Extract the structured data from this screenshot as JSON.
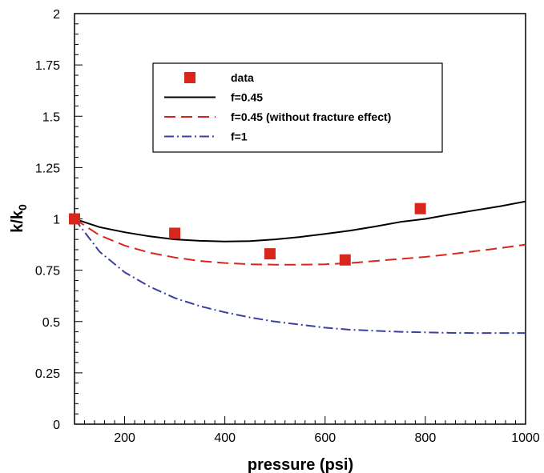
{
  "chart_data": {
    "type": "line",
    "xlabel": "pressure (psi)",
    "ylabel_main": "k/k",
    "ylabel_sub": "0",
    "xlim": [
      100,
      1000
    ],
    "ylim": [
      0,
      2
    ],
    "xticks": [
      200,
      400,
      600,
      800,
      1000
    ],
    "yticks": [
      0,
      0.25,
      0.5,
      0.75,
      1,
      1.25,
      1.5,
      1.75,
      2
    ],
    "ytick_labels": [
      "0",
      "0.25",
      "0.5",
      "0.75",
      "1",
      "1.25",
      "1.5",
      "1.75",
      "2"
    ],
    "grid": false,
    "legend_position": "upper-center",
    "series": [
      {
        "name": "data",
        "kind": "scatter",
        "color": "#d9261c",
        "marker": "square",
        "x": [
          100,
          300,
          490,
          640,
          790
        ],
        "y": [
          1.0,
          0.93,
          0.83,
          0.8,
          1.05
        ]
      },
      {
        "name": "f=0.45",
        "kind": "line",
        "color": "#000000",
        "dash": "solid",
        "x": [
          100,
          150,
          200,
          250,
          300,
          350,
          400,
          450,
          500,
          550,
          600,
          650,
          700,
          750,
          800,
          850,
          900,
          950,
          1000
        ],
        "y": [
          1.0,
          0.96,
          0.935,
          0.915,
          0.9,
          0.893,
          0.89,
          0.892,
          0.9,
          0.912,
          0.927,
          0.943,
          0.963,
          0.985,
          1.0,
          1.022,
          1.042,
          1.062,
          1.085
        ]
      },
      {
        "name": "f=0.45 (without fracture effect)",
        "kind": "line",
        "color": "#d9261c",
        "dash": "dashed",
        "x": [
          100,
          150,
          200,
          250,
          300,
          350,
          400,
          450,
          500,
          550,
          600,
          650,
          700,
          750,
          800,
          850,
          900,
          950,
          1000
        ],
        "y": [
          1.0,
          0.92,
          0.87,
          0.835,
          0.812,
          0.795,
          0.785,
          0.779,
          0.777,
          0.777,
          0.779,
          0.785,
          0.795,
          0.805,
          0.815,
          0.828,
          0.843,
          0.858,
          0.875
        ]
      },
      {
        "name": "f=1",
        "kind": "line",
        "color": "#3a3fa0",
        "dash": "dashdot",
        "x": [
          100,
          150,
          200,
          250,
          300,
          350,
          400,
          450,
          500,
          550,
          600,
          650,
          700,
          750,
          800,
          850,
          900,
          950,
          1000
        ],
        "y": [
          1.0,
          0.84,
          0.74,
          0.67,
          0.615,
          0.575,
          0.545,
          0.52,
          0.5,
          0.485,
          0.47,
          0.46,
          0.455,
          0.45,
          0.447,
          0.445,
          0.444,
          0.444,
          0.444
        ]
      }
    ]
  }
}
